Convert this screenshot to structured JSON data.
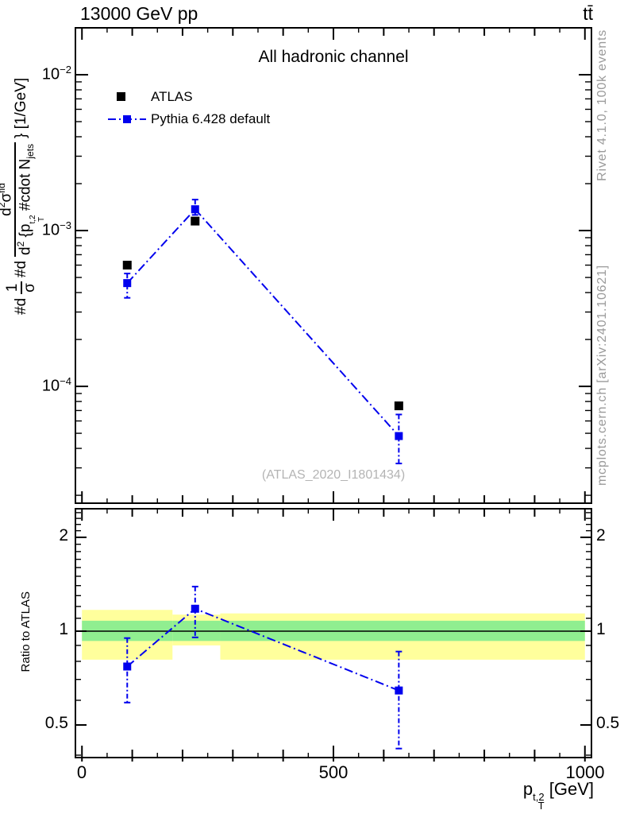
{
  "header": {
    "beam": "13000 GeV pp",
    "process": "tt̄"
  },
  "right_margin": {
    "generator_info": "Rivet 4.1.0,  100k events",
    "source_info": "mcplots.cern.ch [arXiv:2401.10621]"
  },
  "main": {
    "title": "All hadronic channel",
    "watermark": "(ATLAS_2020_I1801434)",
    "legend": [
      {
        "label": "ATLAS",
        "marker": "black-square"
      },
      {
        "label": "Pythia 6.428 default",
        "marker": "blue-square-dashdot-line"
      }
    ],
    "ytick_base": "10",
    "ytick_exps": [
      "−2",
      "−3",
      "−4"
    ],
    "ylabel_parts": {
      "d1": "#d",
      "num1": "1",
      "den1": "σ",
      "d2": "#d",
      "num2_d": "d",
      "num2_sup": "2",
      "num2_sigma": "σ",
      "num2_sup2": "fid",
      "den2_d": "d",
      "den2_sup": "2",
      "den2_open": " {p",
      "den2_psup": "t,2",
      "den2_psub": "T",
      "den2_cdot": " #cdot N",
      "den2_sub": "jets",
      "suffix": "} [1/GeV]"
    }
  },
  "ratio_panel": {
    "ylabel": "Ratio to ATLAS",
    "tick_labels": [
      "2",
      "1",
      "0.5"
    ]
  },
  "xaxis": {
    "tick_labels": [
      "0",
      "500",
      "1000"
    ],
    "label_base": "p",
    "label_sup": "t,2",
    "label_sub": "T",
    "label_unit": "[GeV]"
  },
  "chart_data": {
    "type": "scatter",
    "title": "All hadronic channel",
    "xlabel": "p_T^{t,2} [GeV]",
    "ylabel": "#d 1/sigma #d d^2 sigma^fid / d^2 {p_T^{t,2} #cdot N_jets} } [1/GeV]",
    "legend_position": "top-left",
    "grid": false,
    "xlim": [
      -13,
      1013
    ],
    "main_ylim": [
      1.78e-05,
      0.02
    ],
    "ratio_ylim": [
      0.393,
      2.47
    ],
    "main_yticks": [
      0.01,
      0.001,
      0.0001
    ],
    "ratio_yticks": [
      2,
      1,
      0.5
    ],
    "xticks_major": [
      0,
      500,
      1000
    ],
    "xticks_medium_step": 100,
    "xticks_minor_step": 50,
    "x": [
      90,
      225,
      630
    ],
    "series": [
      {
        "name": "ATLAS",
        "marker": "square",
        "color": "#000000",
        "values": [
          0.0006,
          0.00115,
          7.5e-05
        ]
      },
      {
        "name": "Pythia 6.428 default",
        "marker": "square",
        "color": "#0000ee",
        "linestyle": "dashdot",
        "values": [
          0.00046,
          0.00137,
          4.8e-05
        ],
        "err_lo": [
          0.00037,
          0.00126,
          3.2e-05
        ],
        "err_hi": [
          0.00053,
          0.00158,
          6.6e-05
        ]
      }
    ],
    "ratio": {
      "name": "Pythia / ATLAS",
      "values": [
        0.77,
        1.18,
        0.645
      ],
      "err_lo": [
        0.59,
        0.955,
        0.42
      ],
      "err_hi": [
        0.95,
        1.39,
        0.86
      ],
      "reference_line": 1,
      "bands": [
        {
          "x0": 0,
          "x1": 180,
          "yellow": [
            0.81,
            1.17
          ],
          "green": [
            0.93,
            1.08
          ]
        },
        {
          "x0": 180,
          "x1": 275,
          "yellow": [
            0.9,
            1.13
          ],
          "green": [
            0.93,
            1.08
          ]
        },
        {
          "x0": 275,
          "x1": 1000,
          "yellow": [
            0.81,
            1.14
          ],
          "green": [
            0.93,
            1.08
          ]
        }
      ]
    },
    "colors": {
      "yellow_band": "#ffff9c",
      "green_band": "#90ee90",
      "mc_blue": "#0000ee"
    }
  }
}
